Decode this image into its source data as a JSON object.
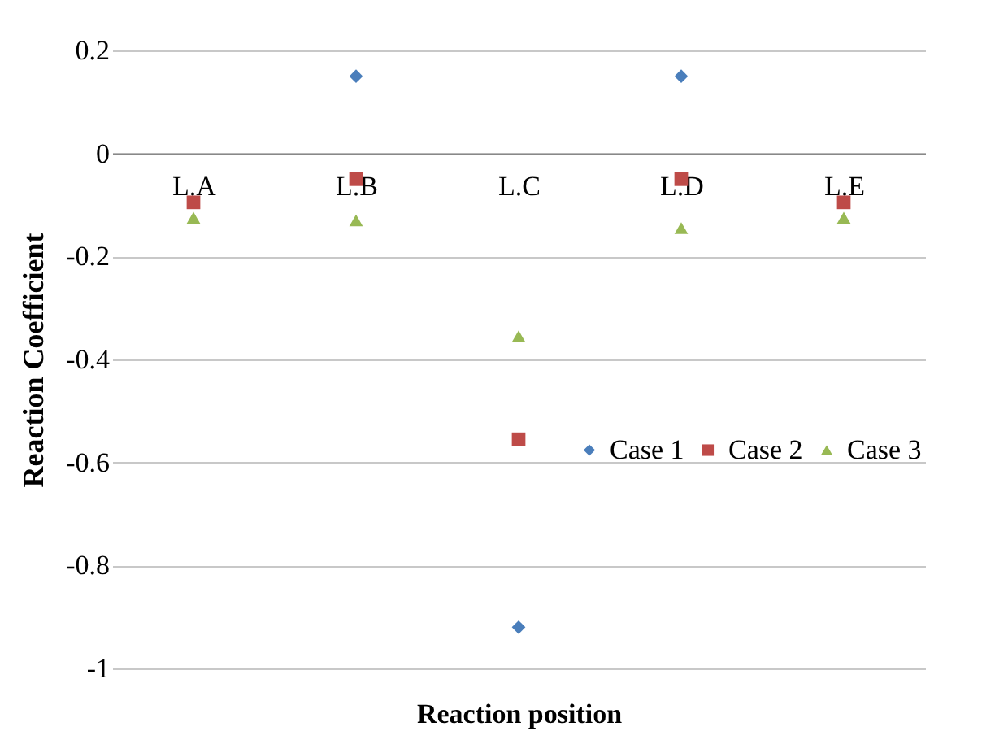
{
  "chart_data": {
    "type": "scatter",
    "xlabel": "Reaction position",
    "ylabel": "Reaction  Coefficient",
    "categories": [
      "L.A",
      "L.B",
      "L.C",
      "L.D",
      "L.E"
    ],
    "series": [
      {
        "name": "Case 1",
        "color": "#4a7ebb",
        "marker": "diamond",
        "values": [
          null,
          0.15,
          -0.92,
          0.15,
          null
        ]
      },
      {
        "name": "Case 2",
        "color": "#be4b48",
        "marker": "square",
        "values": [
          -0.095,
          -0.05,
          -0.555,
          -0.05,
          -0.095
        ]
      },
      {
        "name": "Case 3",
        "color": "#98b954",
        "marker": "triangle",
        "values": [
          -0.125,
          -0.13,
          -0.355,
          -0.145,
          -0.125
        ]
      }
    ],
    "ylim": [
      -1,
      0.2
    ],
    "yticks": [
      -1,
      -0.8,
      -0.6,
      -0.4,
      -0.2,
      0,
      0.2
    ],
    "grid": "y",
    "legend": "right"
  }
}
